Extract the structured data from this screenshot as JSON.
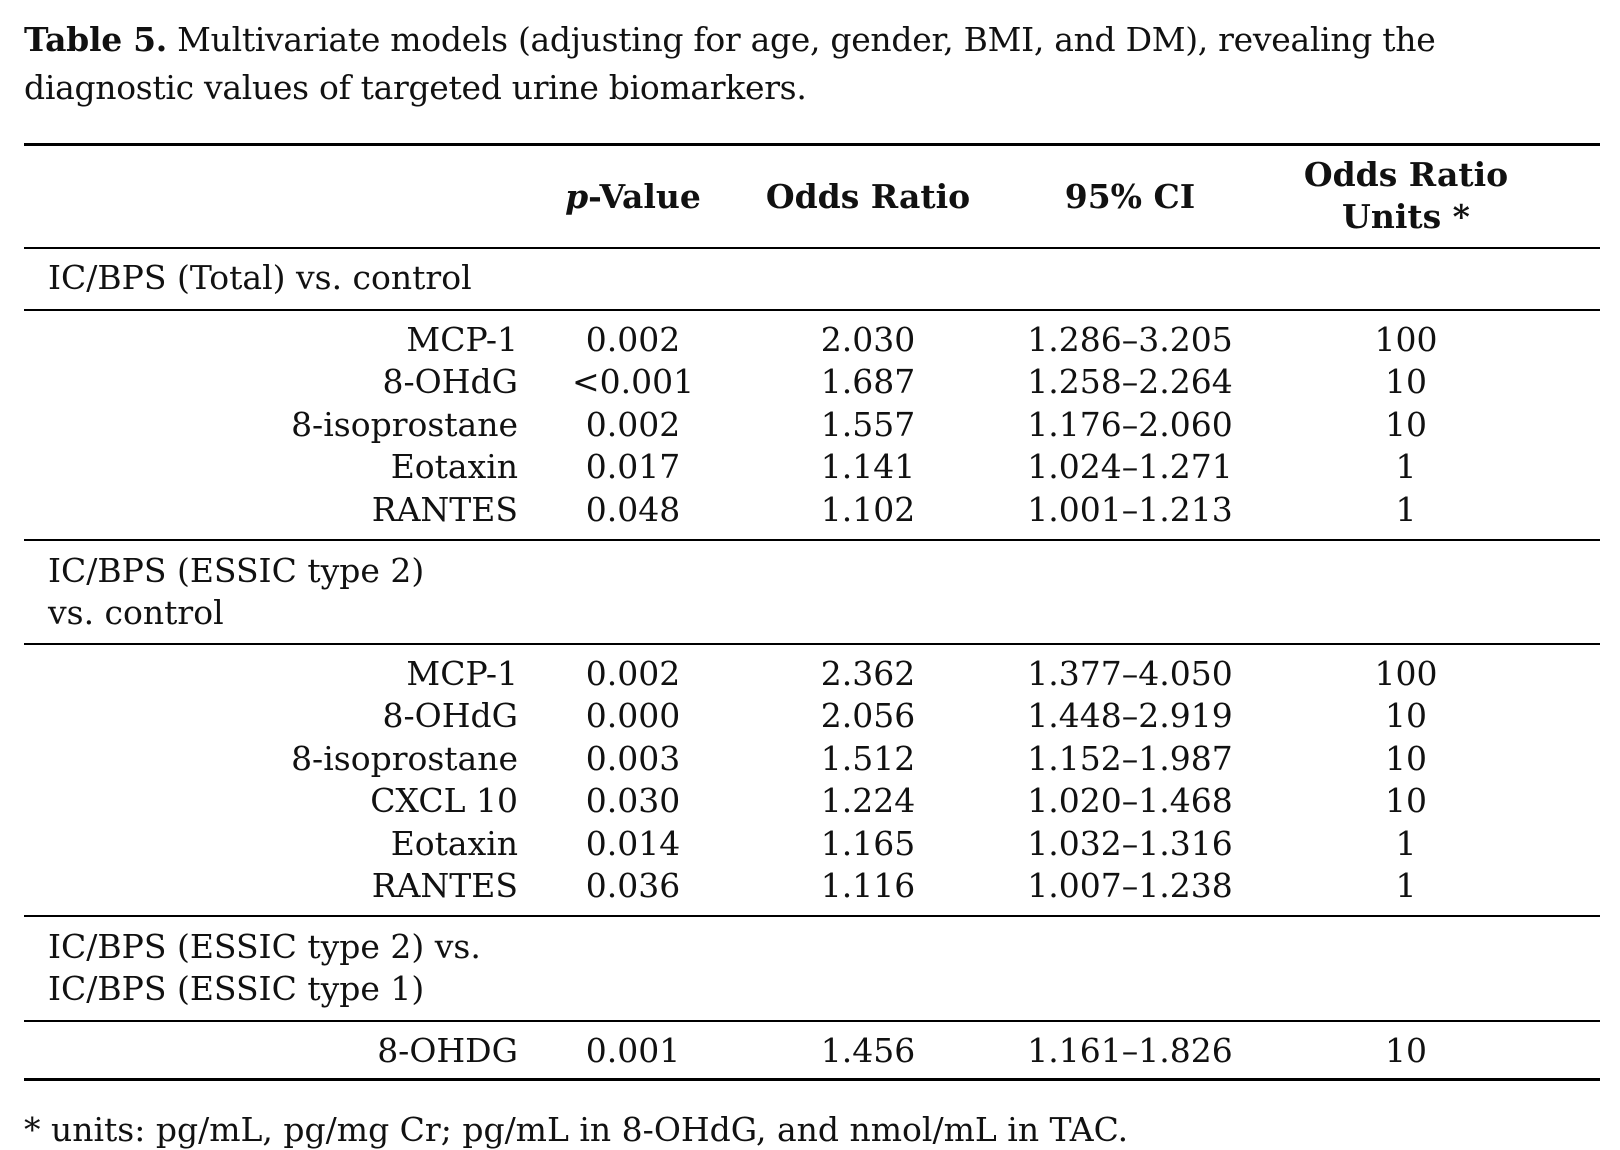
{
  "caption": {
    "label": "Table 5.",
    "text": "Multivariate models (adjusting for age, gender, BMI, and DM), revealing the diagnostic values of targeted urine biomarkers."
  },
  "table": {
    "headers": {
      "p_italic": "p",
      "p_rest": "-Value",
      "odds_ratio": "Odds Ratio",
      "ci": "95% CI",
      "units_line1": "Odds Ratio",
      "units_line2": "Units *"
    },
    "groups": [
      {
        "label": "IC/BPS (Total) vs. control",
        "rows": [
          {
            "name": "MCP-1",
            "p": "0.002",
            "or": "2.030",
            "ci": "1.286–3.205",
            "units": "100"
          },
          {
            "name": "8-OHdG",
            "p": "<0.001",
            "or": "1.687",
            "ci": "1.258–2.264",
            "units": "10"
          },
          {
            "name": "8-isoprostane",
            "p": "0.002",
            "or": "1.557",
            "ci": "1.176–2.060",
            "units": "10"
          },
          {
            "name": "Eotaxin",
            "p": "0.017",
            "or": "1.141",
            "ci": "1.024–1.271",
            "units": "1"
          },
          {
            "name": "RANTES",
            "p": "0.048",
            "or": "1.102",
            "ci": "1.001–1.213",
            "units": "1"
          }
        ]
      },
      {
        "label": "IC/BPS (ESSIC type 2)\nvs. control",
        "rows": [
          {
            "name": "MCP-1",
            "p": "0.002",
            "or": "2.362",
            "ci": "1.377–4.050",
            "units": "100"
          },
          {
            "name": "8-OHdG",
            "p": "0.000",
            "or": "2.056",
            "ci": "1.448–2.919",
            "units": "10"
          },
          {
            "name": "8-isoprostane",
            "p": "0.003",
            "or": "1.512",
            "ci": "1.152–1.987",
            "units": "10"
          },
          {
            "name": "CXCL 10",
            "p": "0.030",
            "or": "1.224",
            "ci": "1.020–1.468",
            "units": "10"
          },
          {
            "name": "Eotaxin",
            "p": "0.014",
            "or": "1.165",
            "ci": "1.032–1.316",
            "units": "1"
          },
          {
            "name": "RANTES",
            "p": "0.036",
            "or": "1.116",
            "ci": "1.007–1.238",
            "units": "1"
          }
        ]
      },
      {
        "label": "IC/BPS (ESSIC type 2) vs.\nIC/BPS (ESSIC type 1)",
        "rows": [
          {
            "name": "8-OHDG",
            "p": "0.001",
            "or": "1.456",
            "ci": "1.161–1.826",
            "units": "10"
          }
        ]
      }
    ]
  },
  "footnote": "* units: pg/mL, pg/mg Cr; pg/mL in 8-OHdG, and nmol/mL in TAC."
}
